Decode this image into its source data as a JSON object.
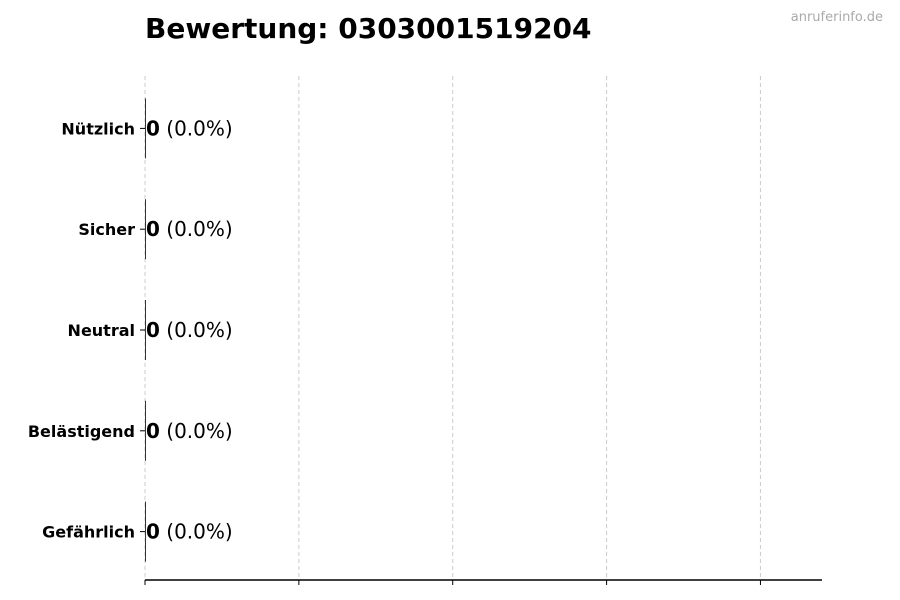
{
  "chart_data": {
    "type": "bar",
    "orientation": "horizontal",
    "title": "Bewertung: 0303001519204",
    "categories": [
      "Nützlich",
      "Sicher",
      "Neutral",
      "Belästigend",
      "Gefährlich"
    ],
    "values": [
      0,
      0,
      0,
      0,
      0
    ],
    "data_labels": [
      {
        "count": "0",
        "percent": "(0.0%)"
      },
      {
        "count": "0",
        "percent": "(0.0%)"
      },
      {
        "count": "0",
        "percent": "(0.0%)"
      },
      {
        "count": "0",
        "percent": "(0.0%)"
      },
      {
        "count": "0",
        "percent": "(0.0%)"
      }
    ],
    "xlabel": "",
    "ylabel": "",
    "xlim": [
      0,
      4.4
    ],
    "xticks": [
      0,
      1,
      2,
      3,
      4
    ],
    "xtick_labels_shown": false,
    "grid": "vertical dashed",
    "bar_color": "#333333",
    "grid_color": "#cccccc"
  },
  "watermark": "anruferinfo.de"
}
